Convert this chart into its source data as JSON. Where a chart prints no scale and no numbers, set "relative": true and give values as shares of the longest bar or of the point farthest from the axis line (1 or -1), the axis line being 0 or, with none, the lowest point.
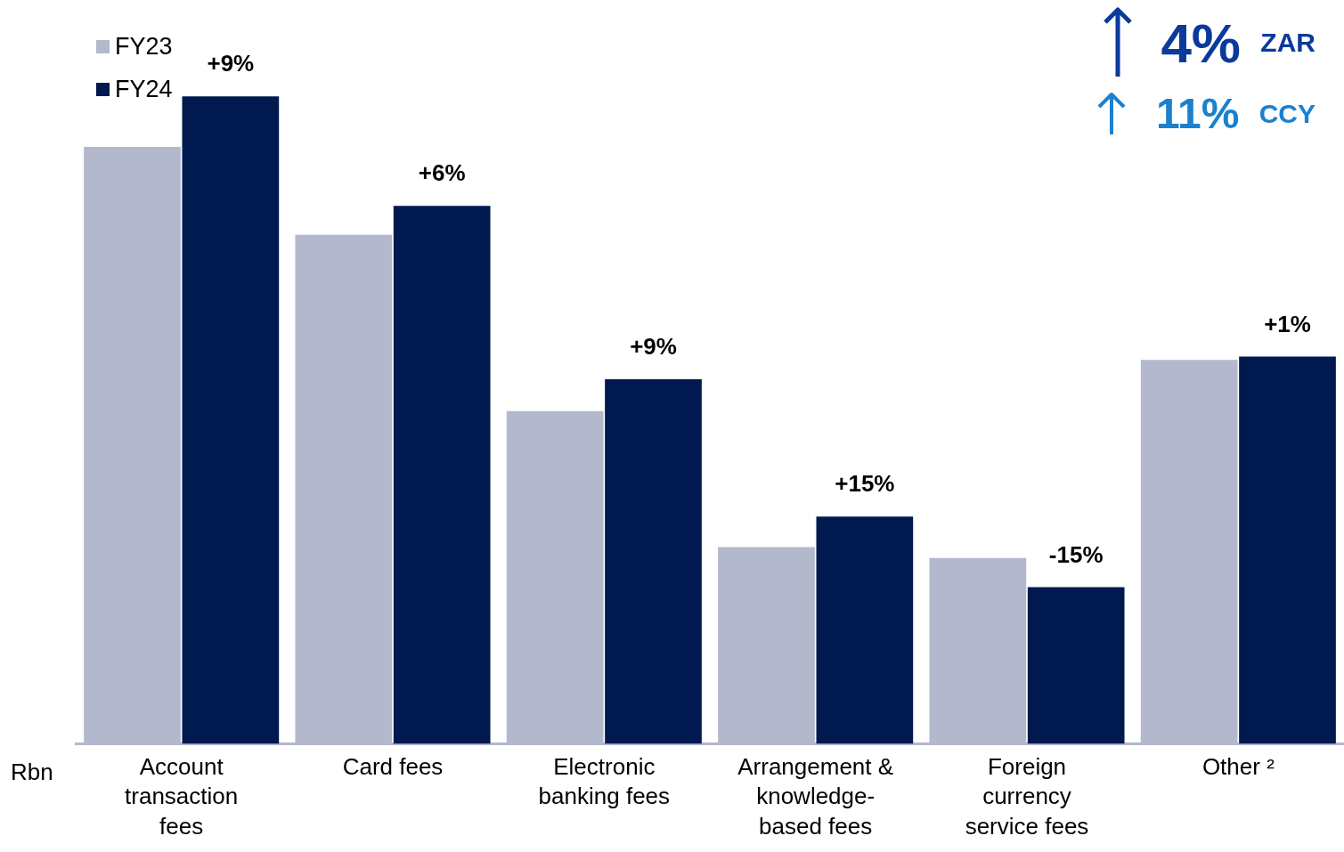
{
  "chart_data": {
    "type": "bar",
    "relative": true,
    "ylabel": "Rbn",
    "legend": "top left",
    "grid": false,
    "categories": [
      "Account transaction fees",
      "Card fees",
      "Electronic banking fees",
      "Arrangement & knowledge-based fees",
      "Foreign currency service fees",
      "Other ²"
    ],
    "series": [
      {
        "name": "FY23",
        "color": "#b3b8cc",
        "values": [
          0.922,
          0.786,
          0.514,
          0.304,
          0.287,
          0.593
        ]
      },
      {
        "name": "FY24",
        "color": "#00194f",
        "values": [
          1,
          0.831,
          0.563,
          0.351,
          0.242,
          0.598
        ]
      }
    ],
    "annotations": [
      {
        "text": "+9%",
        "x": "Account transaction fees",
        "y": 1
      },
      {
        "text": "+6%",
        "x": "Card fees",
        "y": 0.831
      },
      {
        "text": "+9%",
        "x": "Electronic banking fees",
        "y": 0.563
      },
      {
        "text": "+15%",
        "x": "Arrangement & knowledge-based fees",
        "y": 0.351
      },
      {
        "text": "-15%",
        "x": "Foreign currency service fees",
        "y": 0.242
      },
      {
        "text": "+1%",
        "x": "Other ²",
        "y": 0.598
      },
      "4% ZAR",
      "11% CCY"
    ]
  }
}
